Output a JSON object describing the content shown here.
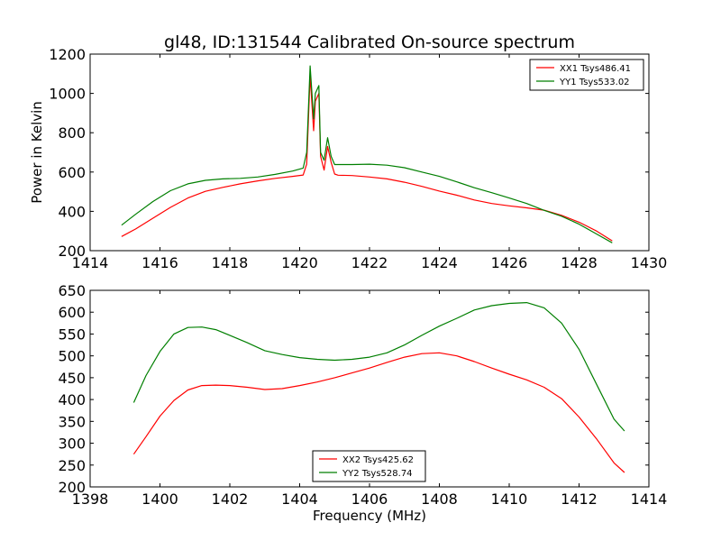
{
  "figure_title": "gl48, ID:131544 Calibrated On-source spectrum",
  "colors": {
    "red": "#ff0000",
    "green": "#007f00",
    "axes": "#000000"
  },
  "chart_data": [
    {
      "type": "line",
      "title": "gl48, ID:131544 Calibrated On-source spectrum",
      "xlabel": "",
      "ylabel": "Power in Kelvin",
      "xlim": [
        1414,
        1430
      ],
      "ylim": [
        200,
        1200
      ],
      "xticks": [
        1414,
        1416,
        1418,
        1420,
        1422,
        1424,
        1426,
        1428,
        1430
      ],
      "yticks": [
        200,
        400,
        600,
        800,
        1000,
        1200
      ],
      "legend_position": "upper right",
      "grid": false,
      "series": [
        {
          "name": "XX1 Tsys486.41",
          "color": "#ff0000",
          "x": [
            1414.9,
            1415.3,
            1415.8,
            1416.3,
            1416.8,
            1417.3,
            1417.8,
            1418.3,
            1418.8,
            1419.3,
            1419.8,
            1420.1,
            1420.2,
            1420.3,
            1420.4,
            1420.45,
            1420.55,
            1420.6,
            1420.7,
            1420.8,
            1420.9,
            1421.0,
            1421.1,
            1421.5,
            1422.0,
            1422.5,
            1423.0,
            1423.5,
            1424.0,
            1424.5,
            1425.0,
            1425.5,
            1426.0,
            1426.5,
            1427.0,
            1427.5,
            1428.0,
            1428.5,
            1428.95
          ],
          "y": [
            272,
            310,
            365,
            420,
            468,
            502,
            522,
            540,
            555,
            568,
            578,
            585,
            640,
            1090,
            810,
            960,
            1000,
            680,
            610,
            730,
            650,
            590,
            584,
            582,
            575,
            565,
            548,
            527,
            503,
            482,
            458,
            440,
            428,
            418,
            406,
            380,
            345,
            300,
            250
          ]
        },
        {
          "name": "YY1 Tsys533.02",
          "color": "#007f00",
          "x": [
            1414.9,
            1415.3,
            1415.8,
            1416.3,
            1416.8,
            1417.3,
            1417.8,
            1418.3,
            1418.8,
            1419.3,
            1419.8,
            1420.1,
            1420.2,
            1420.3,
            1420.4,
            1420.45,
            1420.55,
            1420.6,
            1420.7,
            1420.8,
            1420.9,
            1421.0,
            1421.1,
            1421.5,
            1422.0,
            1422.5,
            1423.0,
            1423.5,
            1424.0,
            1424.5,
            1425.0,
            1425.5,
            1426.0,
            1426.5,
            1427.0,
            1427.5,
            1428.0,
            1428.5,
            1428.95
          ],
          "y": [
            330,
            385,
            450,
            505,
            540,
            558,
            565,
            568,
            575,
            588,
            605,
            620,
            700,
            1140,
            870,
            1000,
            1040,
            700,
            660,
            775,
            680,
            638,
            638,
            638,
            640,
            635,
            622,
            600,
            578,
            550,
            520,
            495,
            468,
            440,
            405,
            375,
            335,
            285,
            240
          ]
        }
      ]
    },
    {
      "type": "line",
      "title": "",
      "xlabel": "Frequency (MHz)",
      "ylabel": "",
      "xlim": [
        1398,
        1414
      ],
      "ylim": [
        200,
        650
      ],
      "xticks": [
        1398,
        1400,
        1402,
        1404,
        1406,
        1408,
        1410,
        1412,
        1414
      ],
      "yticks": [
        200,
        250,
        300,
        350,
        400,
        450,
        500,
        550,
        600,
        650
      ],
      "legend_position": "lower center",
      "grid": false,
      "series": [
        {
          "name": "XX2 Tsys425.62",
          "color": "#ff0000",
          "x": [
            1399.25,
            1399.6,
            1400.0,
            1400.4,
            1400.8,
            1401.2,
            1401.6,
            1402.0,
            1402.5,
            1403.0,
            1403.5,
            1404.0,
            1404.5,
            1405.0,
            1405.5,
            1406.0,
            1406.5,
            1407.0,
            1407.5,
            1408.0,
            1408.5,
            1409.0,
            1409.5,
            1410.0,
            1410.5,
            1411.0,
            1411.5,
            1412.0,
            1412.5,
            1413.0,
            1413.3
          ],
          "y": [
            275,
            315,
            362,
            398,
            422,
            432,
            433,
            432,
            428,
            423,
            425,
            432,
            440,
            450,
            461,
            472,
            485,
            497,
            505,
            507,
            500,
            487,
            472,
            458,
            445,
            428,
            402,
            360,
            310,
            255,
            233
          ]
        },
        {
          "name": "YY2 Tsys528.74",
          "color": "#007f00",
          "x": [
            1399.25,
            1399.6,
            1400.0,
            1400.4,
            1400.8,
            1401.2,
            1401.6,
            1402.0,
            1402.5,
            1403.0,
            1403.5,
            1404.0,
            1404.5,
            1405.0,
            1405.5,
            1406.0,
            1406.5,
            1407.0,
            1407.5,
            1408.0,
            1408.5,
            1409.0,
            1409.5,
            1410.0,
            1410.5,
            1411.0,
            1411.5,
            1412.0,
            1412.5,
            1413.0,
            1413.3
          ],
          "y": [
            393,
            455,
            510,
            550,
            565,
            566,
            560,
            547,
            530,
            512,
            503,
            496,
            492,
            490,
            492,
            497,
            507,
            525,
            547,
            568,
            586,
            605,
            615,
            620,
            622,
            610,
            575,
            515,
            435,
            355,
            328
          ]
        }
      ]
    }
  ]
}
